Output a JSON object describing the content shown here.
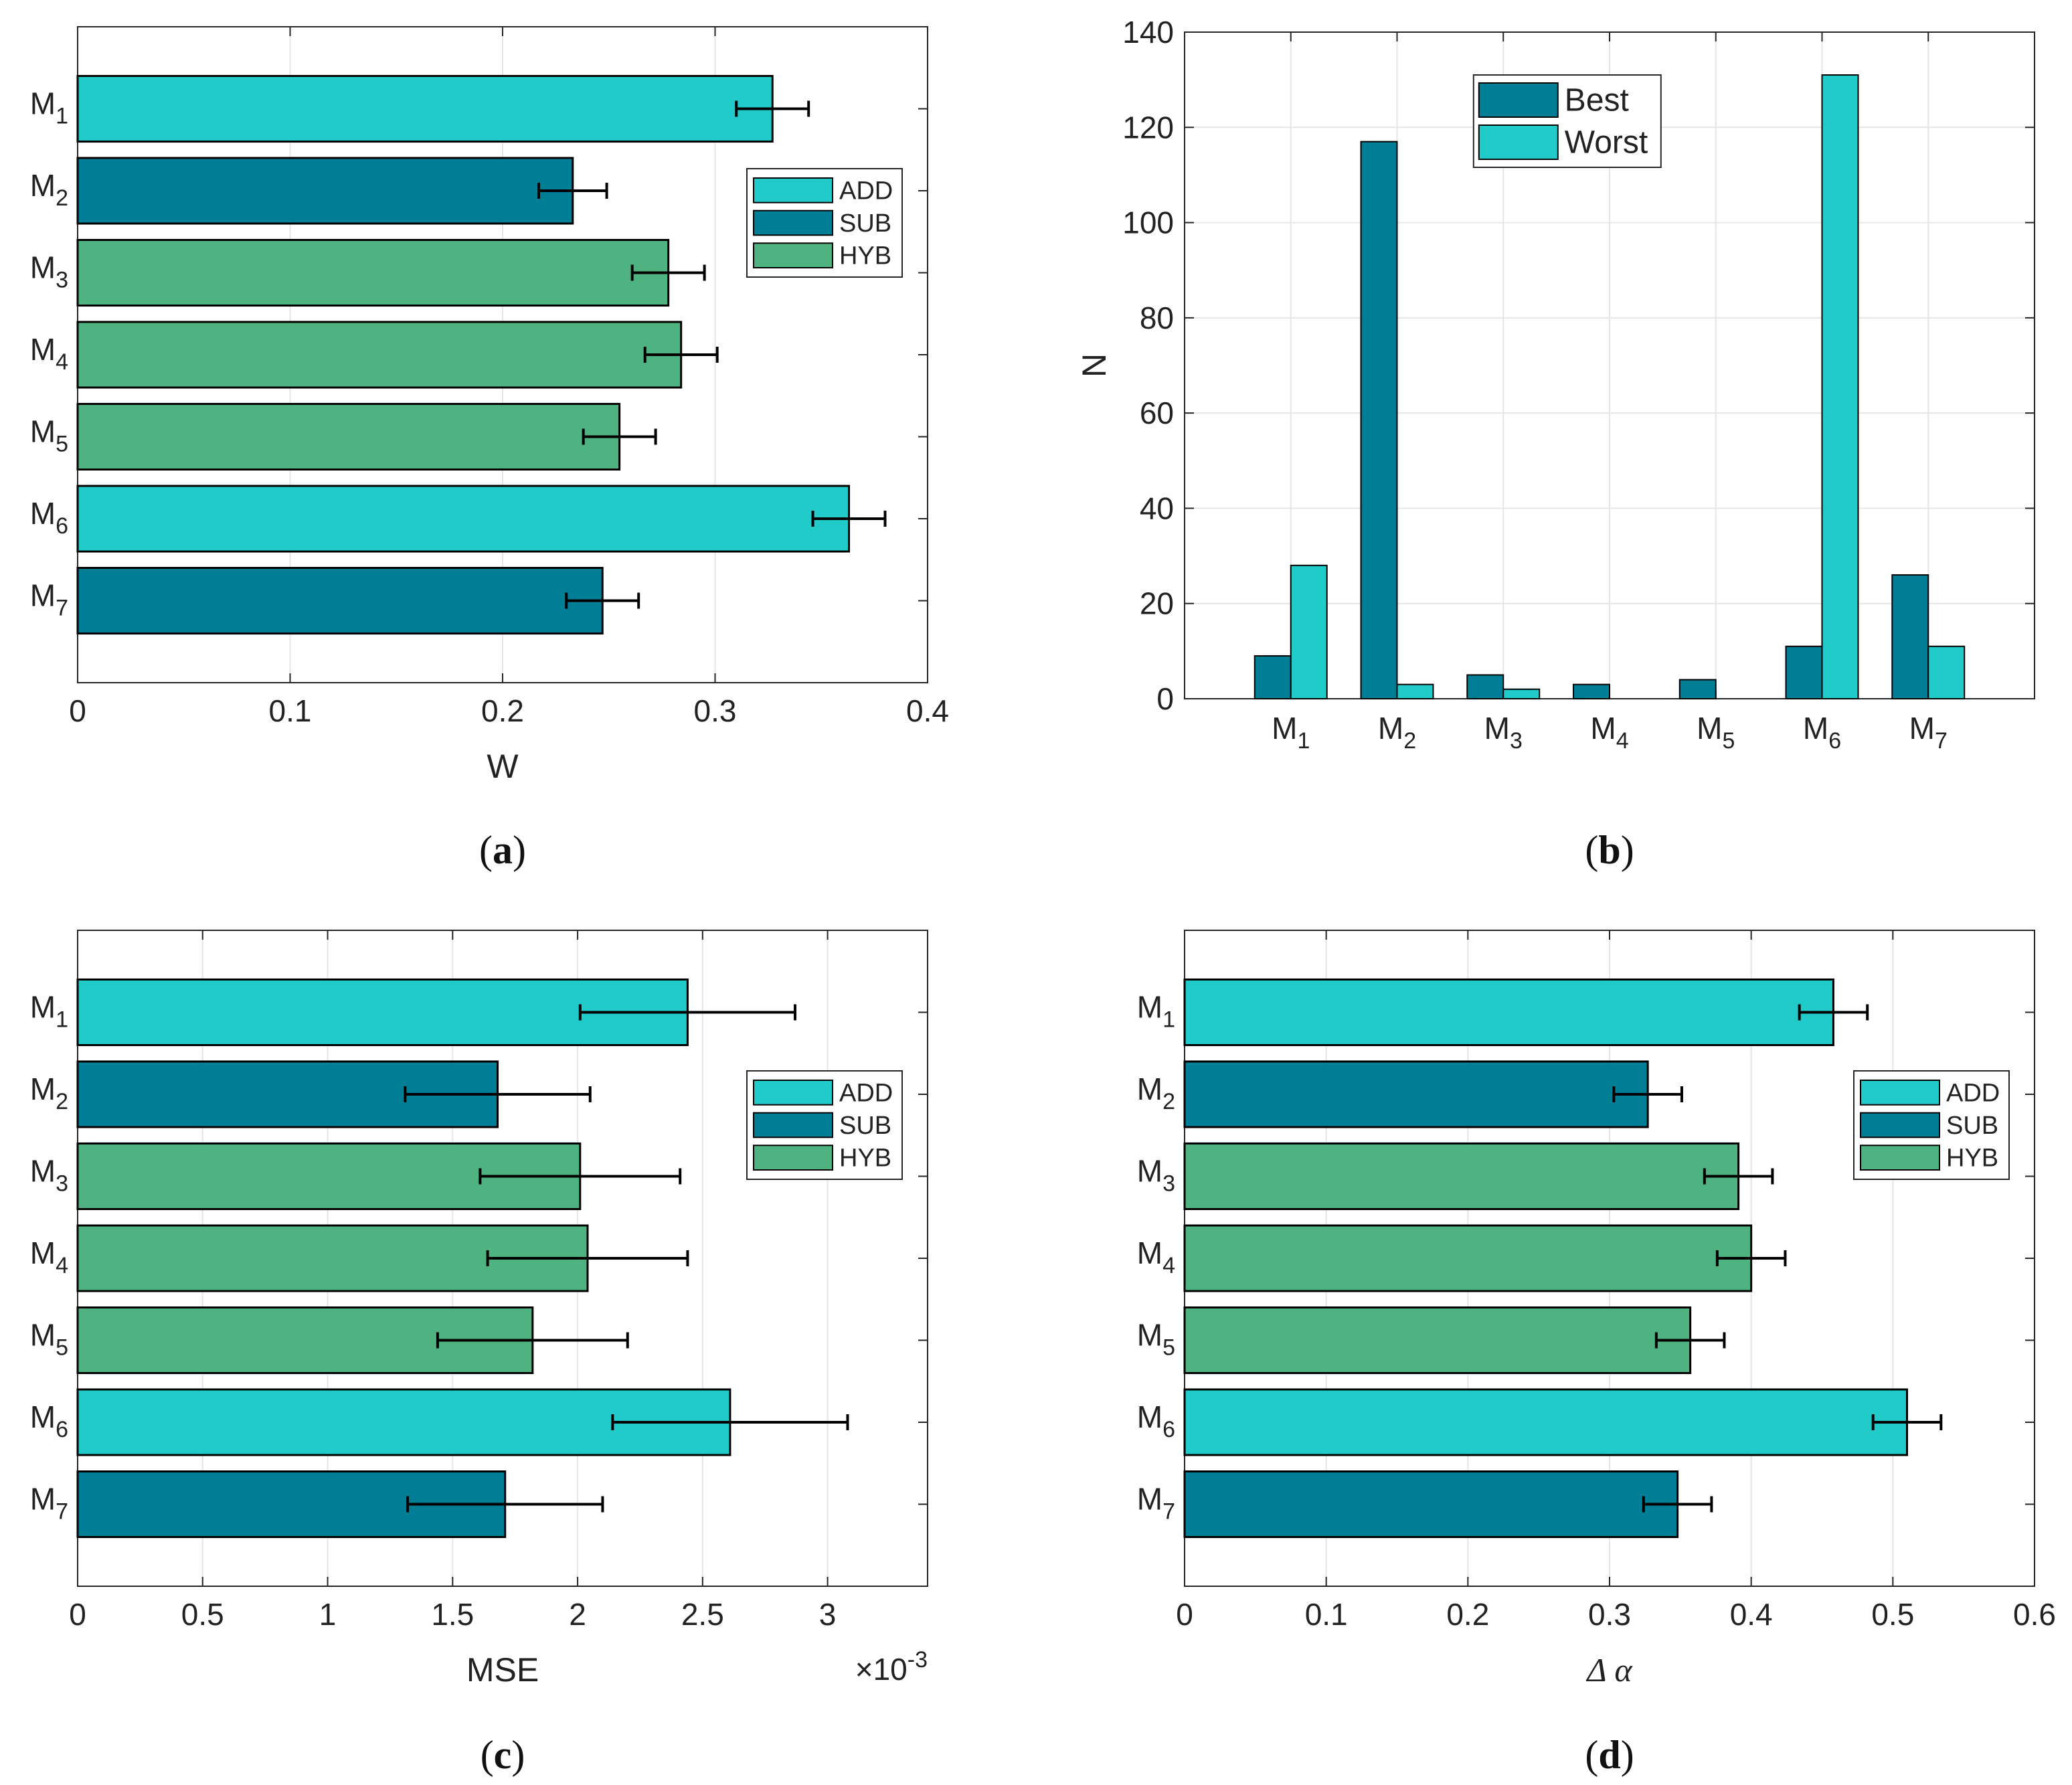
{
  "colors": {
    "ADD": "#20cbca",
    "SUB": "#007e96",
    "HYB": "#4eb381",
    "Best": "#007e96",
    "Worst": "#20cbca",
    "error": "#000000",
    "grid": "#e6e6e6",
    "axis": "#262626"
  },
  "chart_data": [
    {
      "id": "a",
      "type": "bar",
      "orientation": "horizontal",
      "caption": "a",
      "categories": [
        {
          "base": "M",
          "sub": "1"
        },
        {
          "base": "M",
          "sub": "2"
        },
        {
          "base": "M",
          "sub": "3"
        },
        {
          "base": "M",
          "sub": "4"
        },
        {
          "base": "M",
          "sub": "5"
        },
        {
          "base": "M",
          "sub": "6"
        },
        {
          "base": "M",
          "sub": "7"
        }
      ],
      "values": [
        0.327,
        0.233,
        0.278,
        0.284,
        0.255,
        0.363,
        0.247
      ],
      "errors": [
        0.017,
        0.016,
        0.017,
        0.017,
        0.017,
        0.017,
        0.017
      ],
      "groups": [
        "ADD",
        "SUB",
        "HYB",
        "HYB",
        "HYB",
        "ADD",
        "SUB"
      ],
      "xlabel": "W",
      "xlim": [
        0,
        0.4
      ],
      "xticks": [
        0,
        0.1,
        0.2,
        0.3,
        0.4
      ],
      "xtick_labels": [
        "0",
        "0.1",
        "0.2",
        "0.3",
        "0.4"
      ],
      "legend": [
        "ADD",
        "SUB",
        "HYB"
      ],
      "legend_position": "top-right",
      "grid": true
    },
    {
      "id": "b",
      "type": "bar",
      "orientation": "vertical",
      "caption": "b",
      "categories": [
        {
          "base": "M",
          "sub": "1"
        },
        {
          "base": "M",
          "sub": "2"
        },
        {
          "base": "M",
          "sub": "3"
        },
        {
          "base": "M",
          "sub": "4"
        },
        {
          "base": "M",
          "sub": "5"
        },
        {
          "base": "M",
          "sub": "6"
        },
        {
          "base": "M",
          "sub": "7"
        }
      ],
      "series": [
        {
          "name": "Best",
          "values": [
            9,
            117,
            5,
            3,
            4,
            11,
            26
          ]
        },
        {
          "name": "Worst",
          "values": [
            28,
            3,
            2,
            0,
            0,
            131,
            11
          ]
        }
      ],
      "ylabel": "N",
      "ylim": [
        0,
        140
      ],
      "yticks": [
        0,
        20,
        40,
        60,
        80,
        100,
        120,
        140
      ],
      "ytick_labels": [
        "0",
        "20",
        "40",
        "60",
        "80",
        "100",
        "120",
        "140"
      ],
      "legend": [
        "Best",
        "Worst"
      ],
      "legend_position": "top-center",
      "grid": true
    },
    {
      "id": "c",
      "type": "bar",
      "orientation": "horizontal",
      "caption": "c",
      "categories": [
        {
          "base": "M",
          "sub": "1"
        },
        {
          "base": "M",
          "sub": "2"
        },
        {
          "base": "M",
          "sub": "3"
        },
        {
          "base": "M",
          "sub": "4"
        },
        {
          "base": "M",
          "sub": "5"
        },
        {
          "base": "M",
          "sub": "6"
        },
        {
          "base": "M",
          "sub": "7"
        }
      ],
      "values": [
        0.00244,
        0.00168,
        0.00201,
        0.00204,
        0.00182,
        0.00261,
        0.00171
      ],
      "errors": [
        0.00043,
        0.00037,
        0.0004,
        0.0004,
        0.00038,
        0.00047,
        0.00039
      ],
      "groups": [
        "ADD",
        "SUB",
        "HYB",
        "HYB",
        "HYB",
        "ADD",
        "SUB"
      ],
      "xlabel": "MSE",
      "xlim": [
        0,
        0.0034
      ],
      "xticks": [
        0,
        0.0005,
        0.001,
        0.0015,
        0.002,
        0.0025,
        0.003
      ],
      "xtick_labels": [
        "0",
        "0.5",
        "1",
        "1.5",
        "2",
        "2.5",
        "3"
      ],
      "exponent": {
        "base": "×10",
        "power": "-3"
      },
      "legend": [
        "ADD",
        "SUB",
        "HYB"
      ],
      "legend_position": "top-right",
      "grid": true
    },
    {
      "id": "d",
      "type": "bar",
      "orientation": "horizontal",
      "caption": "d",
      "categories": [
        {
          "base": "M",
          "sub": "1"
        },
        {
          "base": "M",
          "sub": "2"
        },
        {
          "base": "M",
          "sub": "3"
        },
        {
          "base": "M",
          "sub": "4"
        },
        {
          "base": "M",
          "sub": "5"
        },
        {
          "base": "M",
          "sub": "6"
        },
        {
          "base": "M",
          "sub": "7"
        }
      ],
      "values": [
        0.458,
        0.327,
        0.391,
        0.4,
        0.357,
        0.51,
        0.348
      ],
      "errors": [
        0.024,
        0.024,
        0.024,
        0.024,
        0.024,
        0.024,
        0.024
      ],
      "groups": [
        "ADD",
        "SUB",
        "HYB",
        "HYB",
        "HYB",
        "ADD",
        "SUB"
      ],
      "xlabel": "Δ α",
      "xlim": [
        0,
        0.6
      ],
      "xticks": [
        0,
        0.1,
        0.2,
        0.3,
        0.4,
        0.5,
        0.6
      ],
      "xtick_labels": [
        "0",
        "0.1",
        "0.2",
        "0.3",
        "0.4",
        "0.5",
        "0.6"
      ],
      "legend": [
        "ADD",
        "SUB",
        "HYB"
      ],
      "legend_position": "top-right",
      "grid": true
    }
  ]
}
